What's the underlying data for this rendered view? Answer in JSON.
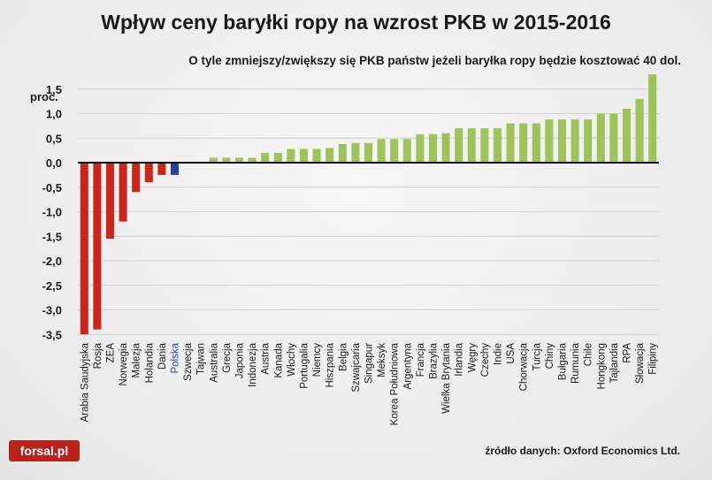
{
  "title": "Wpływ ceny baryłki ropy na wzrost PKB w 2015-2016",
  "subtitle": "O tyle zmniejszy/zwiększy się PKB państw jeżeli baryłka ropy będzie kosztować 40 dol.",
  "source": "źródło danych: Oxford Economics Ltd.",
  "logo": "forsal.pl",
  "colors": {
    "negative": "#c9261d",
    "highlight": "#2a3f9c",
    "positive": "#9dc45a",
    "zero_line": "#000000",
    "grid": "#d0d0d0"
  },
  "chart_data": {
    "type": "bar",
    "title": "Wpływ ceny baryłki ropy na wzrost PKB w 2015-2016",
    "ylabel": "proc.",
    "ylim": [
      -3.5,
      1.9
    ],
    "yticks": [
      1.5,
      1.0,
      0.5,
      0.0,
      -0.5,
      -1.0,
      -1.5,
      -2.0,
      -2.5,
      -3.0,
      -3.5
    ],
    "ytick_labels": [
      "1,5",
      "1,0",
      "0,5",
      "0,0",
      "-0,5",
      "-1,0",
      "-1,5",
      "-2,0",
      "-2,5",
      "-3,0",
      "-3,5"
    ],
    "grid": true,
    "highlight_category": "Polska",
    "categories": [
      "Arabia Saudyjska",
      "Rosja",
      "ZEA",
      "Norwegia",
      "Malezja",
      "Holandia",
      "Dania",
      "Polska",
      "Szwecja",
      "Tajwan",
      "Australia",
      "Grecja",
      "Japonia",
      "Indonezja",
      "Austria",
      "Kanada",
      "Włochy",
      "Portugalia",
      "Niemcy",
      "Hiszpania",
      "Belgia",
      "Szwajcaria",
      "Singapur",
      "Meksyk",
      "Korea Południowa",
      "Argentyna",
      "Francja",
      "Brazylia",
      "Wielka Brytania",
      "Irlandia",
      "Węgry",
      "Czechy",
      "Indie",
      "USA",
      "Chorwacja",
      "Turcja",
      "Chiny",
      "Bułgaria",
      "Rumunia",
      "Chile",
      "Hongkong",
      "Tajlandia",
      "RPA",
      "Słowacja",
      "Filipiny"
    ],
    "values": [
      -3.5,
      -3.4,
      -1.55,
      -1.2,
      -0.6,
      -0.4,
      -0.25,
      -0.25,
      0.0,
      0.0,
      0.1,
      0.1,
      0.1,
      0.1,
      0.2,
      0.2,
      0.28,
      0.28,
      0.28,
      0.3,
      0.38,
      0.4,
      0.4,
      0.48,
      0.48,
      0.48,
      0.58,
      0.58,
      0.6,
      0.7,
      0.7,
      0.7,
      0.7,
      0.8,
      0.8,
      0.8,
      0.88,
      0.88,
      0.88,
      0.88,
      1.0,
      1.0,
      1.1,
      1.3,
      1.8
    ]
  }
}
